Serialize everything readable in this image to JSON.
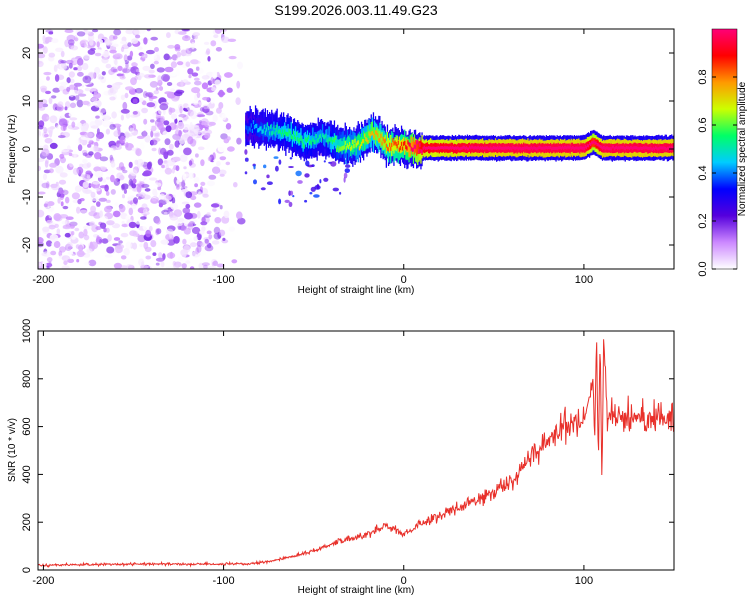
{
  "title": "S199.2026.003.11.49.G23",
  "chart_data": [
    {
      "type": "heatmap",
      "xlabel": "Height of straight line (km)",
      "ylabel": "Frequency (Hz)",
      "xlim": [
        -203,
        150
      ],
      "ylim": [
        -25,
        25
      ],
      "x_ticks": [
        -200,
        -100,
        0,
        100
      ],
      "y_ticks": [
        -20,
        -10,
        0,
        10,
        20
      ],
      "colorbar": {
        "label": "Normalized spectral amplitude",
        "range": [
          0,
          1
        ],
        "ticks": [
          0.0,
          0.2,
          0.4,
          0.6,
          0.8
        ],
        "tick_labels": [
          "0.0",
          "0.2",
          "0.4",
          "0.6",
          "0.8"
        ],
        "colors": [
          "#ffffff",
          "#cc88ff",
          "#5500dd",
          "#0000ff",
          "#00ccff",
          "#00ff66",
          "#ccff00",
          "#ff9900",
          "#ff0000",
          "#ff0077"
        ]
      },
      "noise_region": {
        "x": [
          -203,
          -88
        ],
        "freq": [
          -25,
          25
        ],
        "amplitude": [
          0.0,
          0.2
        ]
      },
      "ridge": [
        {
          "x": -88,
          "freq": 4.5,
          "amp": 0.3
        },
        {
          "x": -75,
          "freq": 4.0,
          "amp": 0.4
        },
        {
          "x": -65,
          "freq": 3.5,
          "amp": 0.45
        },
        {
          "x": -55,
          "freq": 1.5,
          "amp": 0.45
        },
        {
          "x": -45,
          "freq": 2.5,
          "amp": 0.4
        },
        {
          "x": -35,
          "freq": 0.5,
          "amp": 0.5
        },
        {
          "x": -25,
          "freq": 1.0,
          "amp": 0.55
        },
        {
          "x": -17,
          "freq": 3.5,
          "amp": 0.6
        },
        {
          "x": -10,
          "freq": 0.8,
          "amp": 0.65
        },
        {
          "x": 0,
          "freq": 0.5,
          "amp": 0.7
        },
        {
          "x": 10,
          "freq": 0.2,
          "amp": 0.9
        },
        {
          "x": 50,
          "freq": 0.2,
          "amp": 0.95
        },
        {
          "x": 100,
          "freq": 0.2,
          "amp": 0.95
        },
        {
          "x": 105,
          "freq": 1.5,
          "amp": 0.85
        },
        {
          "x": 110,
          "freq": 0.2,
          "amp": 0.95
        },
        {
          "x": 150,
          "freq": 0.2,
          "amp": 0.95
        }
      ]
    },
    {
      "type": "line",
      "xlabel": "Height of straight line (km)",
      "ylabel": "SNR (10 * v/v)",
      "xlim": [
        -203,
        150
      ],
      "ylim": [
        0,
        1000
      ],
      "x_ticks": [
        -200,
        -100,
        0,
        100
      ],
      "y_ticks": [
        0,
        200,
        400,
        600,
        800,
        1000
      ],
      "color": "#e8302a",
      "series": [
        {
          "name": "SNR",
          "x": [
            -203,
            -150,
            -100,
            -85,
            -75,
            -60,
            -50,
            -40,
            -30,
            -20,
            -10,
            0,
            10,
            20,
            30,
            40,
            50,
            60,
            70,
            80,
            90,
            100,
            103,
            105,
            106,
            107,
            108,
            109,
            110,
            111,
            113,
            115,
            130,
            150
          ],
          "values": [
            20,
            25,
            25,
            25,
            35,
            60,
            80,
            110,
            130,
            150,
            190,
            150,
            195,
            230,
            260,
            290,
            330,
            370,
            470,
            540,
            600,
            630,
            720,
            800,
            540,
            980,
            420,
            1000,
            320,
            980,
            630,
            640,
            640,
            640
          ]
        }
      ]
    }
  ]
}
